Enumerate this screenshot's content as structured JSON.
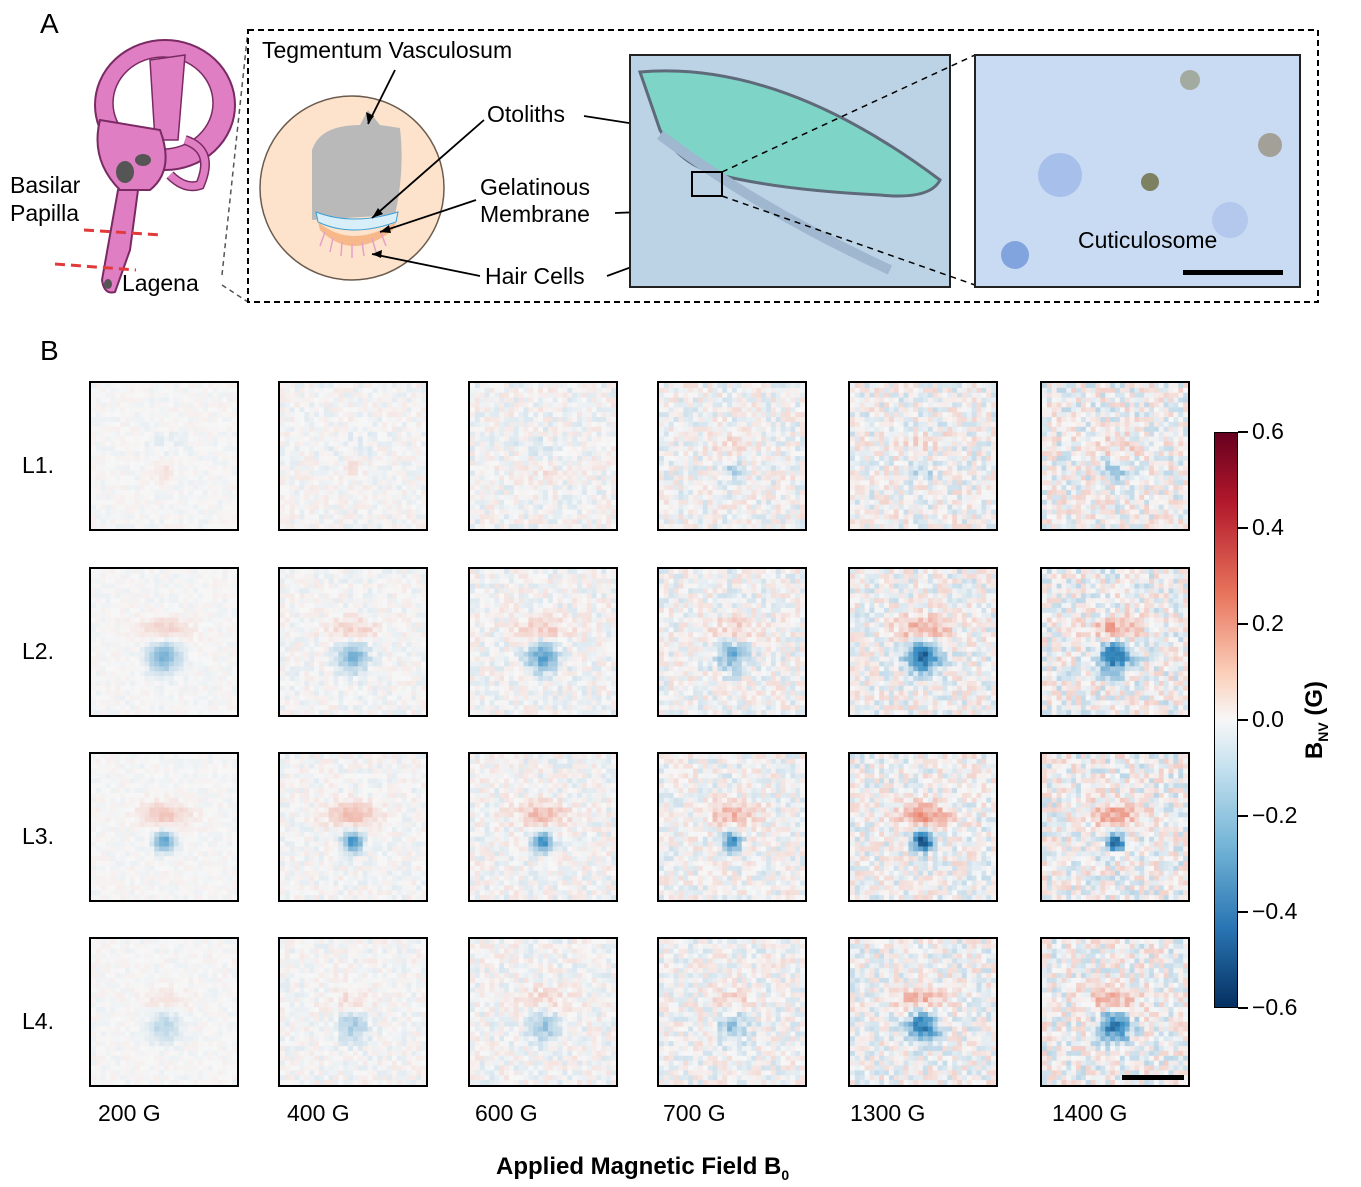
{
  "panel_a": {
    "label": "A",
    "labels": {
      "basilar": "Basilar",
      "papilla": "Papilla",
      "lagena": "Lagena",
      "tegmentum": "Tegmentum Vasculosum",
      "otoliths": "Otoliths",
      "gelatinous": "Gelatinous",
      "membrane": "Membrane",
      "hair_cells": "Hair Cells",
      "cuticulosome": "Cuticulosome"
    }
  },
  "panel_b": {
    "label": "B",
    "rows": [
      "L1.",
      "L2.",
      "L3.",
      "L4."
    ],
    "fields": [
      "200 G",
      "400 G",
      "600 G",
      "700 G",
      "1300 G",
      "1400 G"
    ],
    "xlabel_main": "Applied Magnetic Field B",
    "xlabel_sub": "0",
    "colorbar": {
      "label_main": "B",
      "label_sub": "NV",
      "label_unit": " (G)",
      "ticks": [
        "0.6",
        "0.4",
        "0.2",
        "0.0",
        "−0.2",
        "−0.4",
        "−0.6"
      ],
      "range": [
        -0.6,
        0.6
      ],
      "colors": {
        "max": "#67001f",
        "pos": "#e8745c",
        "zero": "#f7f7f7",
        "neg": "#3a8fc4",
        "min": "#053061"
      }
    }
  },
  "chart_data": {
    "type": "heatmap",
    "rows": [
      "L1.",
      "L2.",
      "L3.",
      "L4."
    ],
    "columns": [
      "200 G",
      "400 G",
      "600 G",
      "700 G",
      "1300 G",
      "1400 G"
    ],
    "value_label": "B_NV (G)",
    "vmin": -0.6,
    "vmax": 0.6,
    "peak_values": [
      [
        0.05,
        0.05,
        0.05,
        -0.1,
        -0.1,
        -0.15
      ],
      [
        -0.2,
        -0.2,
        -0.25,
        -0.2,
        -0.45,
        -0.4
      ],
      [
        -0.25,
        -0.3,
        -0.3,
        -0.3,
        -0.5,
        -0.4
      ],
      [
        -0.1,
        -0.12,
        -0.15,
        -0.15,
        -0.35,
        -0.35
      ]
    ]
  }
}
